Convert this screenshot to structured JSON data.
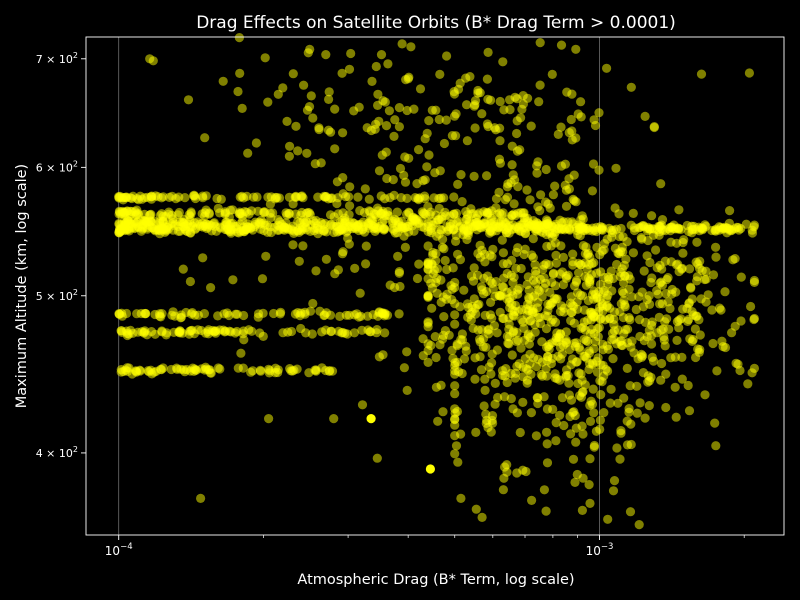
{
  "chart_data": {
    "type": "scatter",
    "title": "Drag Effects on Satellite Orbits (B* Drag Term > 0.0001)",
    "xlabel": "Atmospheric Drag (B* Term, log scale)",
    "ylabel": "Maximum Altitude (km, log scale)",
    "xscale": "log",
    "yscale": "log",
    "xlim": [
      8.55e-05,
      0.00242
    ],
    "ylim": [
      356,
      722
    ],
    "x_ticks": [
      {
        "value": 0.0001,
        "base": "10",
        "exp": "−4"
      },
      {
        "value": 0.001,
        "base": "10",
        "exp": "−3"
      }
    ],
    "y_ticks": [
      {
        "value": 400,
        "mant": "4 × 10",
        "exp": "2"
      },
      {
        "value": 500,
        "mant": "5 × 10",
        "exp": "2"
      },
      {
        "value": 600,
        "mant": "6 × 10",
        "exp": "2"
      },
      {
        "value": 700,
        "mant": "7 × 10",
        "exp": "2"
      }
    ],
    "grid": "vertical major lines only",
    "legend": "none",
    "marker_color": "#ffff00",
    "marker_alpha": 0.5,
    "background": "#000000",
    "bands": [
      {
        "y": 550,
        "x_from": 0.0001,
        "x_to": 0.0021,
        "count": 420,
        "spread": 4
      },
      {
        "y": 555,
        "x_from": 0.0001,
        "x_to": 0.0009,
        "count": 160,
        "spread": 3
      },
      {
        "y": 562,
        "x_from": 0.0001,
        "x_to": 0.0007,
        "count": 140,
        "spread": 3
      },
      {
        "y": 575,
        "x_from": 0.0001,
        "x_to": 0.0005,
        "count": 90,
        "spread": 2
      },
      {
        "y": 487,
        "x_from": 0.0001,
        "x_to": 0.0004,
        "count": 70,
        "spread": 2
      },
      {
        "y": 475,
        "x_from": 0.0001,
        "x_to": 0.00037,
        "count": 80,
        "spread": 2
      },
      {
        "y": 450,
        "x_from": 0.0001,
        "x_to": 0.00028,
        "count": 70,
        "spread": 2
      }
    ],
    "clouds": [
      {
        "x_center": 0.0009,
        "x_spread": 0.35,
        "y_center": 495,
        "y_spread": 0.065,
        "count": 650,
        "x_min": 0.00044,
        "x_max": 0.0021
      },
      {
        "x_center": 0.00085,
        "x_spread": 0.3,
        "y_center": 440,
        "y_spread": 0.08,
        "count": 200,
        "x_min": 0.0005,
        "x_max": 0.0021
      },
      {
        "x_center": 0.00045,
        "x_spread": 0.45,
        "y_center": 640,
        "y_spread": 0.06,
        "count": 200,
        "x_min": 0.00012,
        "x_max": 0.0013
      },
      {
        "x_center": 0.0005,
        "x_spread": 0.5,
        "y_center": 520,
        "y_spread": 0.08,
        "count": 160,
        "x_min": 0.0001,
        "x_max": 0.002
      }
    ],
    "points": [
      {
        "x": 0.000335,
        "y": 420,
        "alpha": 1
      },
      {
        "x": 0.000445,
        "y": 391,
        "alpha": 1
      },
      {
        "x": 0.000148,
        "y": 375
      },
      {
        "x": 0.000116,
        "y": 700
      },
      {
        "x": 0.000118,
        "y": 698
      },
      {
        "x": 0.000205,
        "y": 420
      },
      {
        "x": 0.00028,
        "y": 420
      },
      {
        "x": 0.000345,
        "y": 397
      },
      {
        "x": 0.000515,
        "y": 375
      },
      {
        "x": 0.00163,
        "y": 685
      },
      {
        "x": 0.00205,
        "y": 686
      },
      {
        "x": 0.00104,
        "y": 364
      },
      {
        "x": 0.00116,
        "y": 368
      },
      {
        "x": 0.00057,
        "y": 365
      }
    ]
  }
}
